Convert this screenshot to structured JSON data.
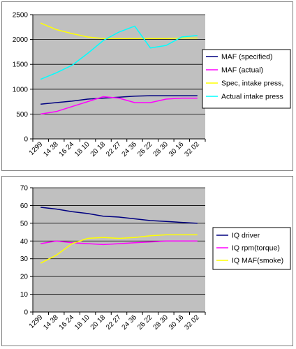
{
  "chart_data": [
    {
      "type": "line",
      "title": "",
      "xlabel": "",
      "ylabel": "",
      "categories": [
        "1299",
        "14 38",
        "16 24",
        "18 10",
        "20 18",
        "22 27",
        "24 36",
        "26 22",
        "28 30",
        "30 16",
        "32 02"
      ],
      "ylim": [
        0,
        2500
      ],
      "yticks": [
        0,
        500,
        1000,
        1500,
        2000,
        2500
      ],
      "grid": "horizontal",
      "plot_background": "#c0c0c0",
      "legend": "right",
      "series": [
        {
          "name": "MAF (specified)",
          "color": "#000080",
          "values": [
            700,
            730,
            760,
            800,
            820,
            840,
            860,
            870,
            870,
            870,
            870
          ]
        },
        {
          "name": "MAF (actual)",
          "color": "#ff00ff",
          "values": [
            500,
            550,
            650,
            750,
            850,
            820,
            730,
            730,
            800,
            820,
            820
          ]
        },
        {
          "name": "Spec, intake press,",
          "color": "#ffff00",
          "values": [
            2330,
            2200,
            2120,
            2050,
            2020,
            2020,
            2020,
            2020,
            2020,
            2030,
            2030
          ]
        },
        {
          "name": "Actual intake press",
          "color": "#00ffff",
          "values": [
            1200,
            1330,
            1480,
            1720,
            1980,
            2150,
            2270,
            1830,
            1880,
            2050,
            2080
          ]
        }
      ]
    },
    {
      "type": "line",
      "title": "",
      "xlabel": "",
      "ylabel": "",
      "categories": [
        "1299",
        "14 38",
        "16 24",
        "18 10",
        "20 18",
        "22 27",
        "24 36",
        "26 22",
        "28 30",
        "30 16",
        "32 02"
      ],
      "ylim": [
        0,
        70
      ],
      "yticks": [
        0,
        10,
        20,
        30,
        40,
        50,
        60,
        70
      ],
      "grid": "horizontal",
      "plot_background": "#c0c0c0",
      "legend": "right",
      "series": [
        {
          "name": "IQ driver",
          "color": "#000080",
          "values": [
            59,
            58,
            56.5,
            55.5,
            54,
            53.5,
            52.5,
            51.5,
            51,
            50.5,
            50
          ]
        },
        {
          "name": "IQ rpm(torque)",
          "color": "#ff00ff",
          "values": [
            38.5,
            40,
            39,
            38.5,
            38,
            38.5,
            39,
            39.5,
            40,
            40,
            40
          ]
        },
        {
          "name": "IQ MAF(smoke)",
          "color": "#ffff00",
          "values": [
            27.5,
            32,
            38.5,
            41.5,
            42,
            41.5,
            42,
            43,
            43.5,
            43.5,
            43.5
          ]
        }
      ]
    }
  ]
}
